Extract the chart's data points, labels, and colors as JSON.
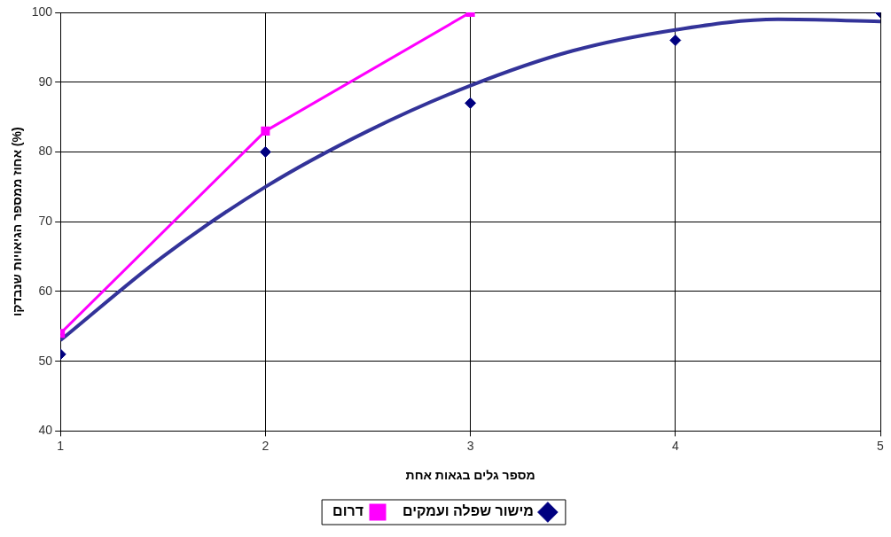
{
  "chart_data": {
    "type": "scatter",
    "xlabel": "מספר גלים בגאות אחת",
    "ylabel": "אחוז ממספר הגיאויות שנבדקו (%)",
    "xlim": [
      1,
      5
    ],
    "xticks": [
      1,
      2,
      3,
      4,
      5
    ],
    "ylim": [
      40,
      100
    ],
    "yticks": [
      40,
      50,
      60,
      70,
      80,
      90,
      100
    ],
    "grid": true,
    "legend": "bottom",
    "series": [
      {
        "name": "מישור שפלה ועמקים",
        "color": "#000080",
        "marker": "diamond",
        "x": [
          1,
          2,
          3,
          4,
          5
        ],
        "values": [
          51,
          80,
          87,
          96,
          100
        ]
      },
      {
        "name": "דרום",
        "type": "line",
        "color": "#ff00ff",
        "marker": "square",
        "x": [
          1,
          2,
          3
        ],
        "values": [
          54,
          83,
          100
        ]
      },
      {
        "type": "line",
        "color": "#333399",
        "marker": "none",
        "x": [
          1,
          1.5,
          2,
          2.5,
          3,
          3.5,
          4,
          4.5,
          5
        ],
        "values": [
          53,
          65,
          75,
          83,
          89.5,
          94.5,
          97.5,
          99,
          98.7
        ]
      }
    ]
  }
}
